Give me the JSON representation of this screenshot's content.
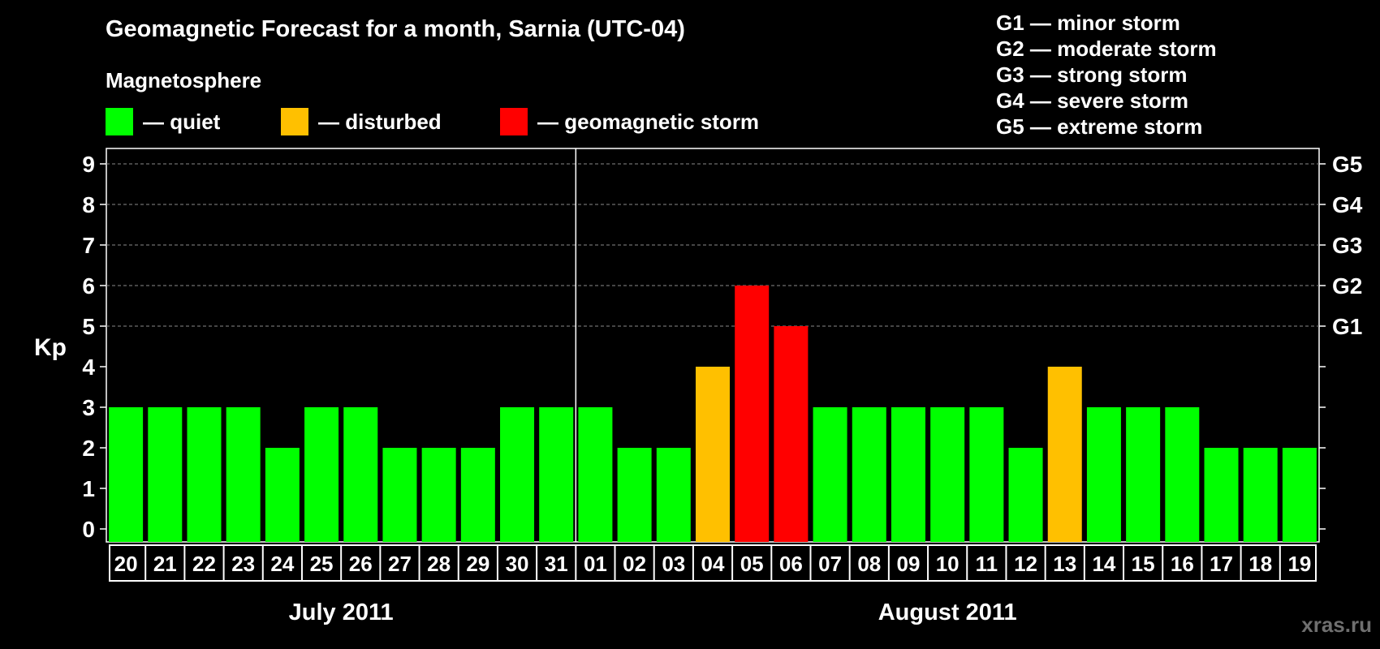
{
  "title": "Geomagnetic Forecast for a month, Sarnia (UTC-04)",
  "subtitle": "Magnetosphere",
  "legend": [
    {
      "label": "— quiet",
      "color": "#00ff00"
    },
    {
      "label": "— disturbed",
      "color": "#ffc000"
    },
    {
      "label": "— geomagnetic storm",
      "color": "#ff0000"
    }
  ],
  "storm_scale": [
    "G1 — minor storm",
    "G2 — moderate storm",
    "G3 — strong storm",
    "G4 — severe storm",
    "G5 — extreme storm"
  ],
  "watermark": "xras.ru",
  "chart_data": {
    "type": "bar",
    "ylabel": "Kp",
    "ylim": [
      0,
      9
    ],
    "yticks": [
      0,
      1,
      2,
      3,
      4,
      5,
      6,
      7,
      8,
      9
    ],
    "right_axis_labels": [
      {
        "kp": 5,
        "label": "G1"
      },
      {
        "kp": 6,
        "label": "G2"
      },
      {
        "kp": 7,
        "label": "G3"
      },
      {
        "kp": 8,
        "label": "G4"
      },
      {
        "kp": 9,
        "label": "G5"
      }
    ],
    "grid": "dashed horizontal at Kp 5-9",
    "months": [
      {
        "label": "July 2011",
        "first_index": 0,
        "last_index": 11
      },
      {
        "label": "August 2011",
        "first_index": 12,
        "last_index": 30
      }
    ],
    "categories": [
      "20",
      "21",
      "22",
      "23",
      "24",
      "25",
      "26",
      "27",
      "28",
      "29",
      "30",
      "31",
      "01",
      "02",
      "03",
      "04",
      "05",
      "06",
      "07",
      "08",
      "09",
      "10",
      "11",
      "12",
      "13",
      "14",
      "15",
      "16",
      "17",
      "18",
      "19"
    ],
    "values": [
      3,
      3,
      3,
      3,
      2,
      3,
      3,
      2,
      2,
      2,
      3,
      3,
      3,
      2,
      2,
      4,
      6,
      5,
      3,
      3,
      3,
      3,
      3,
      2,
      4,
      3,
      3,
      3,
      2,
      2,
      2
    ],
    "colors": {
      "quiet": "#00ff00",
      "disturbed": "#ffc000",
      "storm": "#ff0000"
    }
  }
}
